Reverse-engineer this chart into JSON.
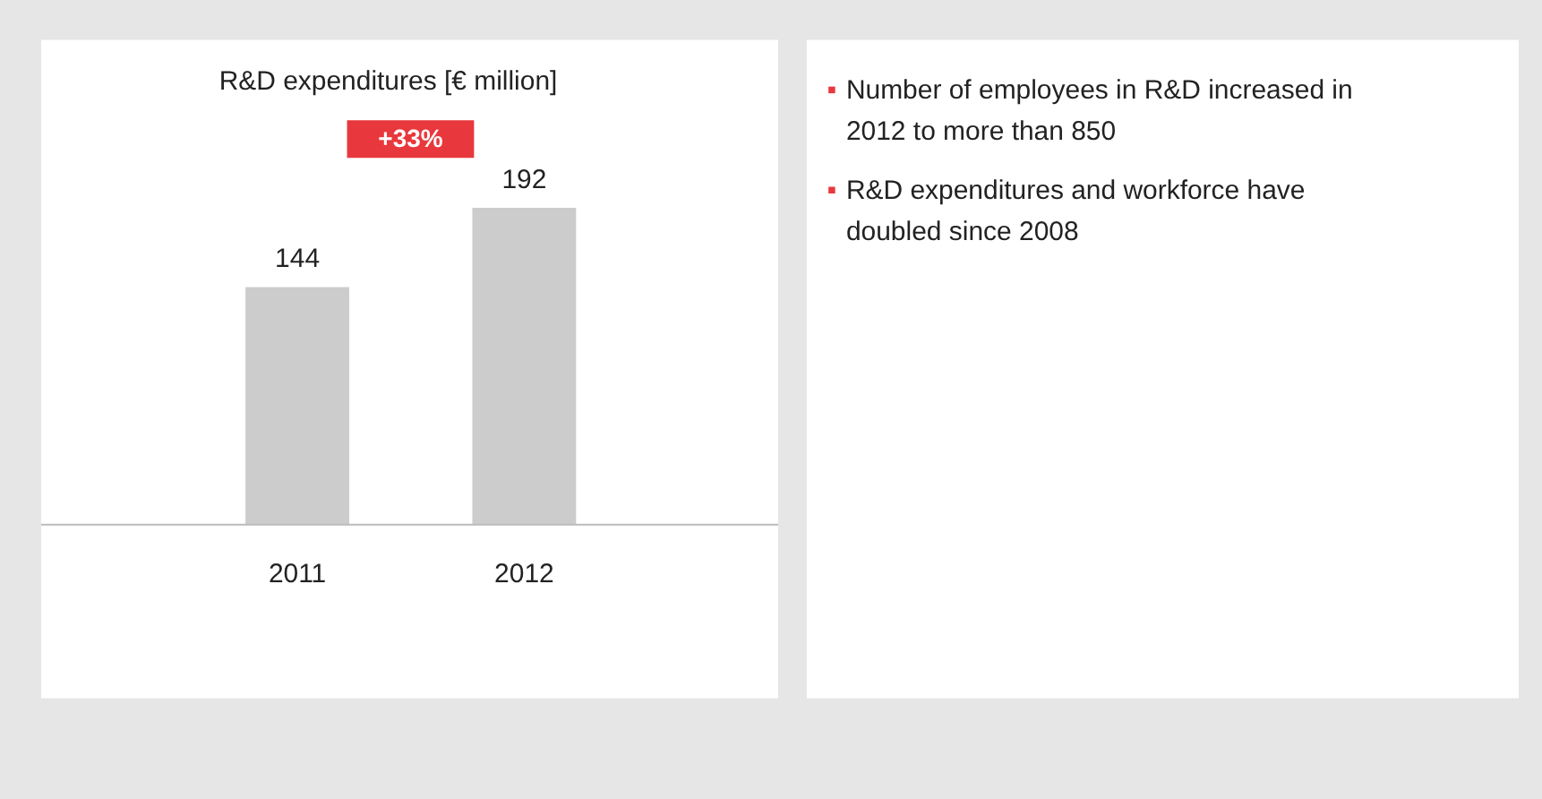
{
  "chart_data": {
    "type": "bar",
    "title": "R&D expenditures [€ million]",
    "categories": [
      "2011",
      "2012"
    ],
    "values": [
      144,
      192
    ],
    "color": "#cccccc",
    "data_labels": true,
    "annotations": [
      "+33%",
      "Number of employees in R&D increased in 2012 to more than 850",
      "R&D expenditures and workforce have doubled since 2008"
    ]
  }
}
